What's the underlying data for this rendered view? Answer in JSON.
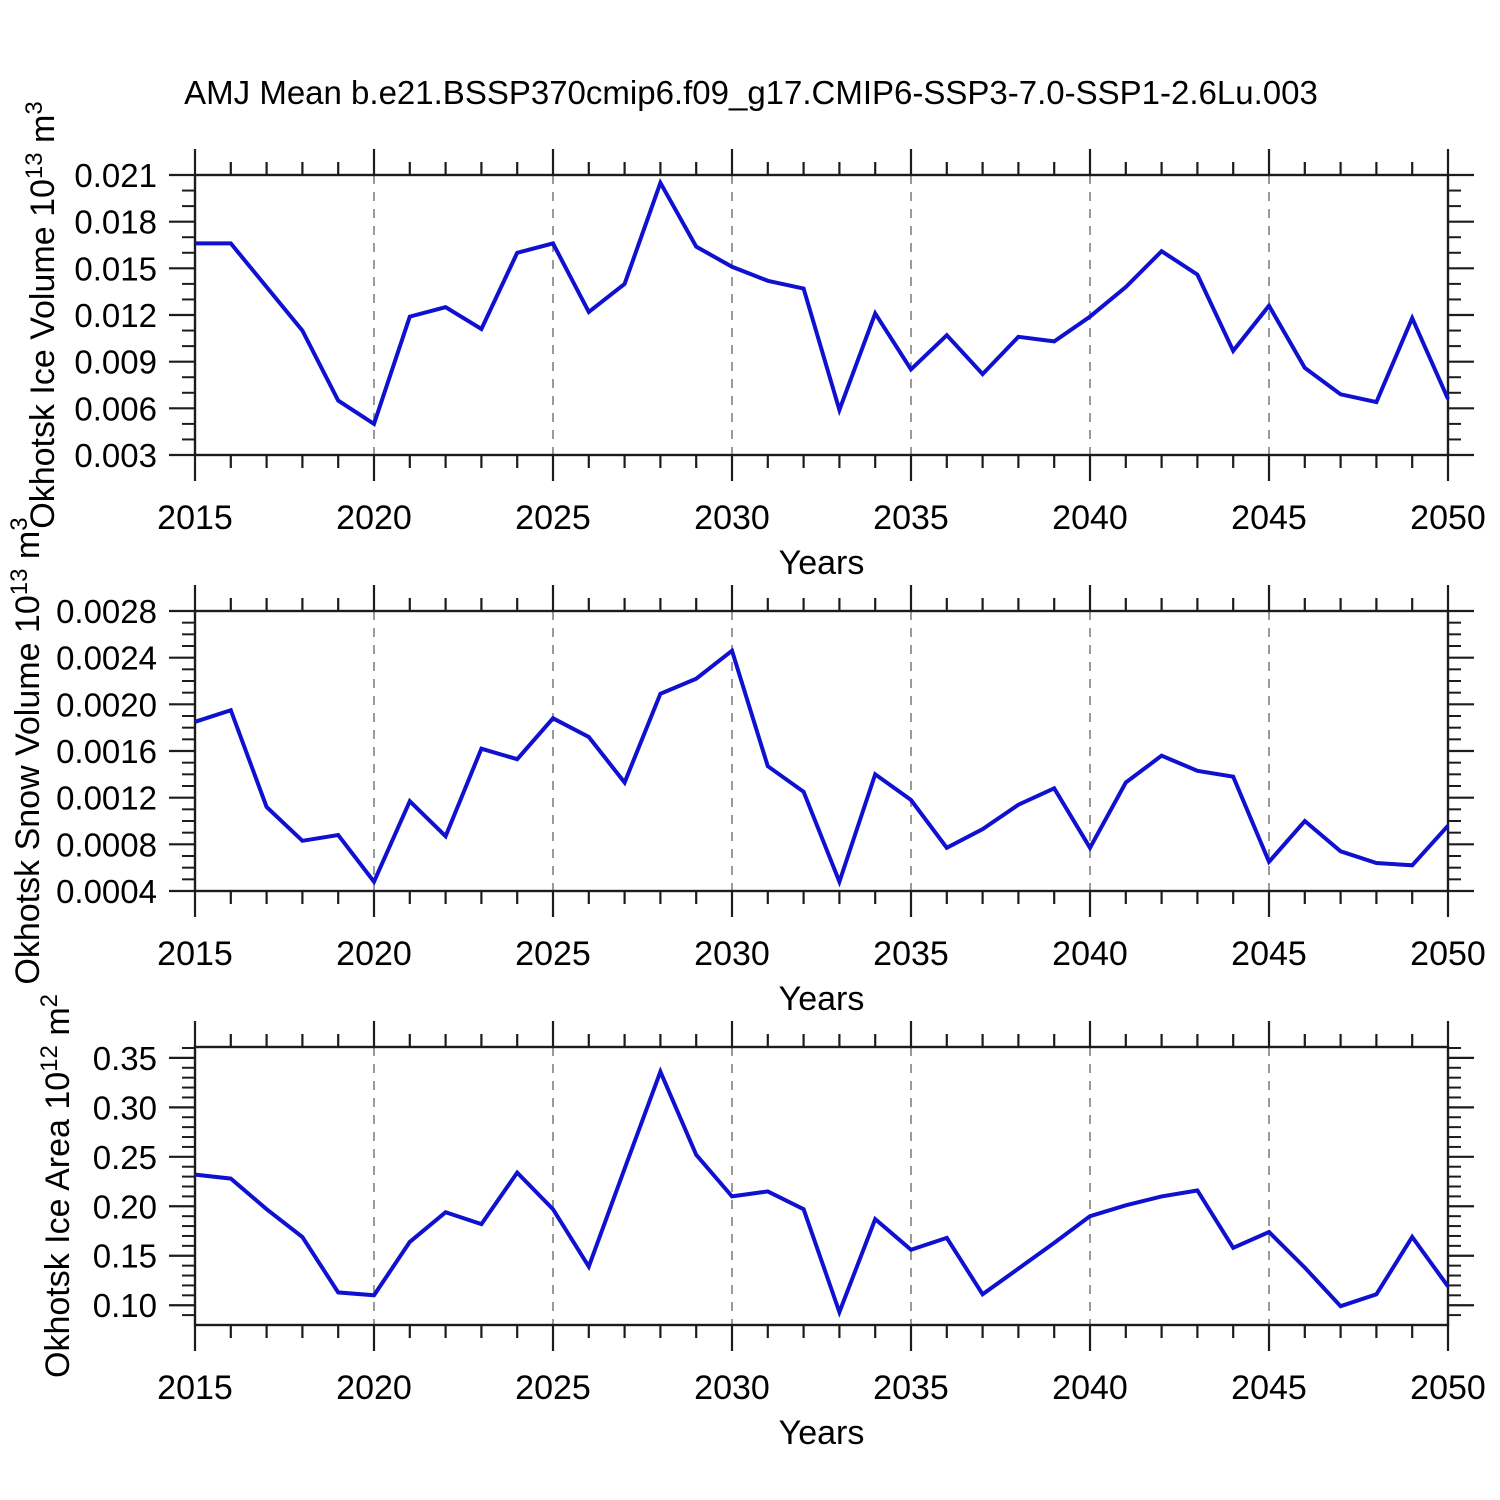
{
  "page_title": "AMJ Mean b.e21.BSSP370cmip6.f09_g17.CMIP6-SSP3-7.0-SSP1-2.6Lu.003",
  "colors": {
    "line": "#1010d0",
    "grid": "#9a9a9a",
    "frame": "#1c1c1c",
    "text": "#000000",
    "background": "#ffffff"
  },
  "chart_data": [
    {
      "type": "line",
      "name": "okhotsk-ice-volume",
      "ylabel_segments": [
        {
          "t": "Okhotsk Ice Volume 10"
        },
        {
          "t": "13",
          "sup": true
        },
        {
          "t": " m"
        },
        {
          "t": "3",
          "sup": true
        }
      ],
      "xlabel": "Years",
      "x": [
        2015,
        2016,
        2017,
        2018,
        2019,
        2020,
        2021,
        2022,
        2023,
        2024,
        2025,
        2026,
        2027,
        2028,
        2029,
        2030,
        2031,
        2032,
        2033,
        2034,
        2035,
        2036,
        2037,
        2038,
        2039,
        2040,
        2041,
        2042,
        2043,
        2044,
        2045,
        2046,
        2047,
        2048,
        2049,
        2050
      ],
      "values": [
        0.0166,
        0.0166,
        0.0138,
        0.011,
        0.0065,
        0.005,
        0.0119,
        0.0125,
        0.0111,
        0.016,
        0.0166,
        0.0122,
        0.014,
        0.0205,
        0.0164,
        0.0151,
        0.0142,
        0.0137,
        0.0059,
        0.0121,
        0.0085,
        0.0107,
        0.0082,
        0.0106,
        0.0103,
        0.0119,
        0.0138,
        0.0161,
        0.0146,
        0.0097,
        0.0126,
        0.0086,
        0.0069,
        0.0064,
        0.0118,
        0.0066
      ],
      "xlim": [
        2015,
        2050
      ],
      "ylim": [
        0.003,
        0.021
      ],
      "yticks": [
        0.003,
        0.006,
        0.009,
        0.012,
        0.015,
        0.018,
        0.021
      ],
      "ytick_labels": [
        "0.003",
        "0.006",
        "0.009",
        "0.012",
        "0.015",
        "0.018",
        "0.021"
      ],
      "yminor_step": 0.001,
      "xticks": [
        2015,
        2020,
        2025,
        2030,
        2035,
        2040,
        2045,
        2050
      ],
      "xtick_labels": [
        "2015",
        "2020",
        "2025",
        "2030",
        "2035",
        "2040",
        "2045",
        "2050"
      ],
      "xminor_step": 1,
      "grid_years": [
        2020,
        2025,
        2030,
        2035,
        2040,
        2045
      ],
      "grid": "vertical-dashed",
      "legend": "none"
    },
    {
      "type": "line",
      "name": "okhotsk-snow-volume",
      "ylabel_segments": [
        {
          "t": "Okhotsk Snow Volume 10"
        },
        {
          "t": "13",
          "sup": true
        },
        {
          "t": " m"
        },
        {
          "t": "3",
          "sup": true
        }
      ],
      "xlabel": "Years",
      "x": [
        2015,
        2016,
        2017,
        2018,
        2019,
        2020,
        2021,
        2022,
        2023,
        2024,
        2025,
        2026,
        2027,
        2028,
        2029,
        2030,
        2031,
        2032,
        2033,
        2034,
        2035,
        2036,
        2037,
        2038,
        2039,
        2040,
        2041,
        2042,
        2043,
        2044,
        2045,
        2046,
        2047,
        2048,
        2049,
        2050
      ],
      "values": [
        0.00185,
        0.00195,
        0.00112,
        0.00083,
        0.00088,
        0.00048,
        0.00117,
        0.00087,
        0.00162,
        0.00153,
        0.00188,
        0.00172,
        0.00133,
        0.00209,
        0.00222,
        0.00246,
        0.00147,
        0.00125,
        0.00048,
        0.0014,
        0.00118,
        0.00077,
        0.00093,
        0.00114,
        0.00128,
        0.00077,
        0.00133,
        0.00156,
        0.00143,
        0.00138,
        0.00065,
        0.001,
        0.00074,
        0.00064,
        0.00062,
        0.00096
      ],
      "xlim": [
        2015,
        2050
      ],
      "ylim": [
        0.0004,
        0.0028
      ],
      "yticks": [
        0.0004,
        0.0008,
        0.0012,
        0.0016,
        0.002,
        0.0024,
        0.0028
      ],
      "ytick_labels": [
        "0.0004",
        "0.0008",
        "0.0012",
        "0.0016",
        "0.0020",
        "0.0024",
        "0.0028"
      ],
      "yminor_step": 0.0001,
      "xticks": [
        2015,
        2020,
        2025,
        2030,
        2035,
        2040,
        2045,
        2050
      ],
      "xtick_labels": [
        "2015",
        "2020",
        "2025",
        "2030",
        "2035",
        "2040",
        "2045",
        "2050"
      ],
      "xminor_step": 1,
      "grid_years": [
        2020,
        2025,
        2030,
        2035,
        2040,
        2045
      ],
      "grid": "vertical-dashed",
      "legend": "none"
    },
    {
      "type": "line",
      "name": "okhotsk-ice-area",
      "ylabel_segments": [
        {
          "t": "Okhotsk Ice Area 10"
        },
        {
          "t": "12",
          "sup": true
        },
        {
          "t": " m"
        },
        {
          "t": "2",
          "sup": true
        }
      ],
      "xlabel": "Years",
      "x": [
        2015,
        2016,
        2017,
        2018,
        2019,
        2020,
        2021,
        2022,
        2023,
        2024,
        2025,
        2026,
        2027,
        2028,
        2029,
        2030,
        2031,
        2032,
        2033,
        2034,
        2035,
        2036,
        2037,
        2038,
        2039,
        2040,
        2041,
        2042,
        2043,
        2044,
        2045,
        2046,
        2047,
        2048,
        2049,
        2050
      ],
      "values": [
        0.232,
        0.228,
        0.197,
        0.169,
        0.113,
        0.11,
        0.164,
        0.194,
        0.182,
        0.234,
        0.197,
        0.139,
        0.238,
        0.336,
        0.252,
        0.21,
        0.215,
        0.197,
        0.093,
        0.187,
        0.156,
        0.168,
        0.111,
        0.137,
        0.163,
        0.19,
        0.201,
        0.21,
        0.216,
        0.158,
        0.174,
        0.138,
        0.099,
        0.111,
        0.169,
        0.119
      ],
      "xlim": [
        2015,
        2050
      ],
      "ylim": [
        0.08,
        0.361
      ],
      "yticks": [
        0.1,
        0.15,
        0.2,
        0.25,
        0.3,
        0.35
      ],
      "ytick_labels": [
        "0.10",
        "0.15",
        "0.20",
        "0.25",
        "0.30",
        "0.35"
      ],
      "yminor_step": 0.01,
      "xticks": [
        2015,
        2020,
        2025,
        2030,
        2035,
        2040,
        2045,
        2050
      ],
      "xtick_labels": [
        "2015",
        "2020",
        "2025",
        "2030",
        "2035",
        "2040",
        "2045",
        "2050"
      ],
      "xminor_step": 1,
      "grid_years": [
        2020,
        2025,
        2030,
        2035,
        2040,
        2045
      ],
      "grid": "vertical-dashed",
      "legend": "none"
    }
  ]
}
